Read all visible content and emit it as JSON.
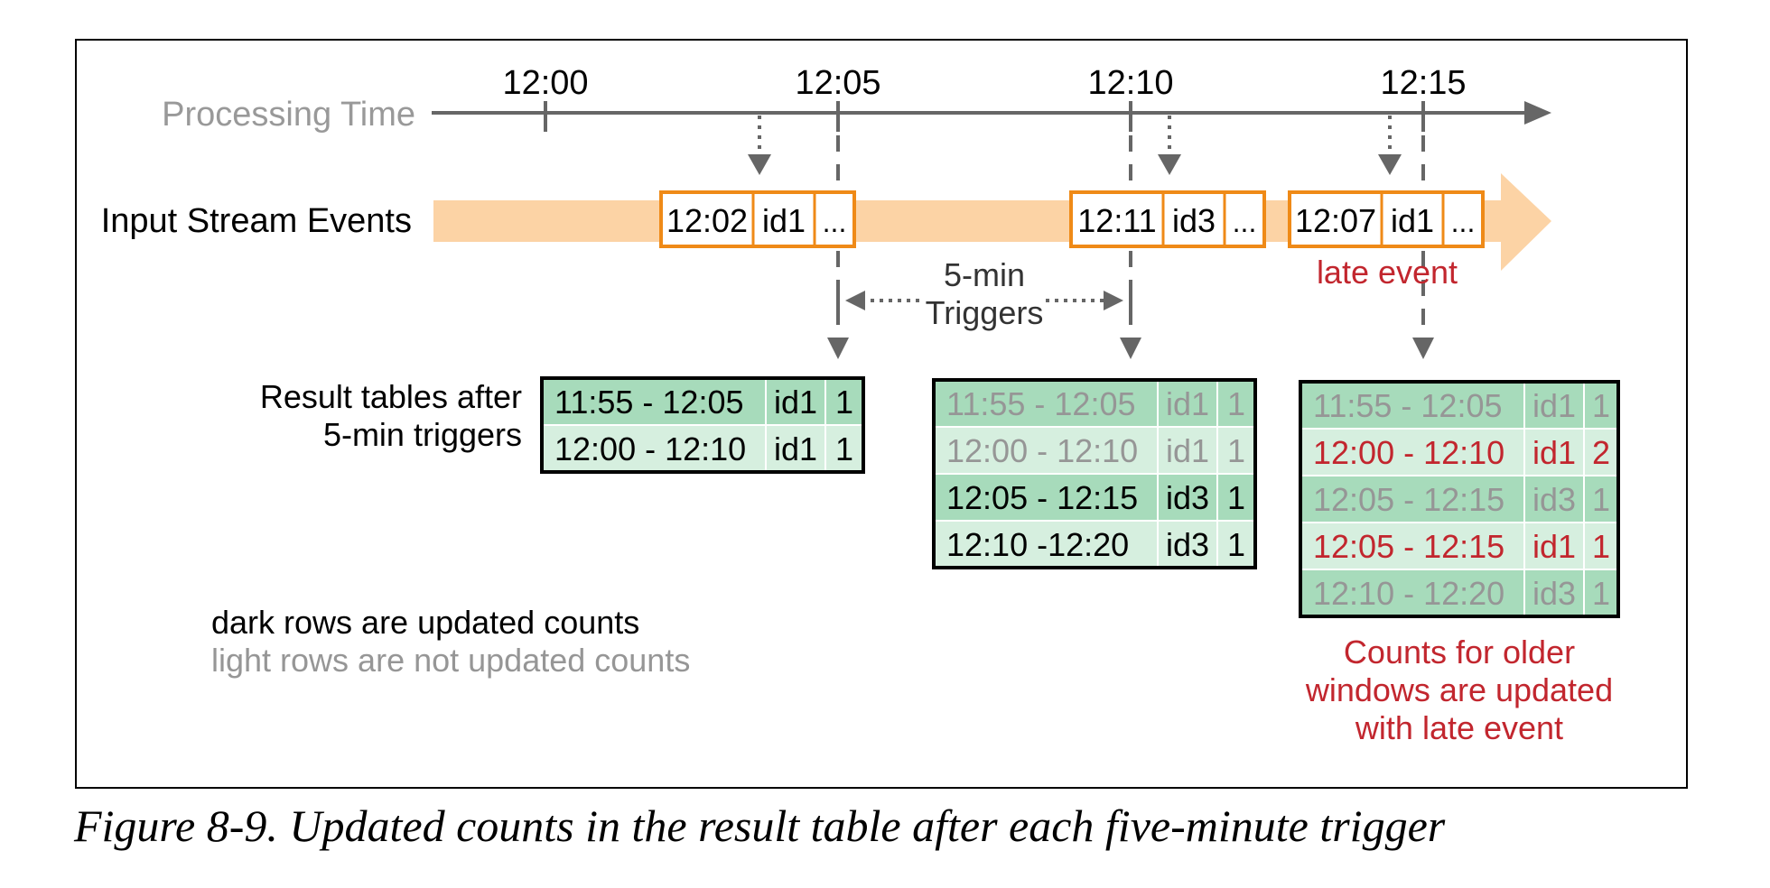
{
  "colors": {
    "frame": "#000000",
    "axis": "#666666",
    "axis_label": "#999999",
    "stream_band": "#fcd3a5",
    "event_border": "#ef8a17",
    "event_fill": "#ffffff",
    "table_border": "#000000",
    "table_dark": "#a7dbbb",
    "table_light": "#d6efdf",
    "text_dark": "#000000",
    "text_faded": "#969696",
    "text_red": "#c2262e"
  },
  "diagram": {
    "processing_time_label": "Processing  Time",
    "ticks": [
      "12:00",
      "12:05",
      "12:10",
      "12:15"
    ],
    "input_stream_label": "Input Stream Events",
    "events": [
      {
        "time": "12:02",
        "id": "id1",
        "more": "..."
      },
      {
        "time": "12:11",
        "id": "id3",
        "more": "..."
      },
      {
        "time": "12:07",
        "id": "id1",
        "more": "..."
      }
    ],
    "late_event_label": "late event",
    "triggers_label_line1": "5-min",
    "triggers_label_line2": "Triggers",
    "result_label_line1": "Result tables after",
    "result_label_line2": "5-min triggers",
    "tables": [
      {
        "rows": [
          {
            "window": "11:55 - 12:05",
            "id": "id1",
            "count": "1",
            "style": "dark"
          },
          {
            "window": "12:00 - 12:10",
            "id": "id1",
            "count": "1",
            "style": "dark"
          }
        ]
      },
      {
        "rows": [
          {
            "window": "11:55 - 12:05",
            "id": "id1",
            "count": "1",
            "style": "faded"
          },
          {
            "window": "12:00 - 12:10",
            "id": "id1",
            "count": "1",
            "style": "faded"
          },
          {
            "window": "12:05 - 12:15",
            "id": "id3",
            "count": "1",
            "style": "dark"
          },
          {
            "window": "12:10 -12:20",
            "id": "id3",
            "count": "1",
            "style": "dark"
          }
        ]
      },
      {
        "rows": [
          {
            "window": "11:55 - 12:05",
            "id": "id1",
            "count": "1",
            "style": "faded"
          },
          {
            "window": "12:00 - 12:10",
            "id": "id1",
            "count": "2",
            "style": "red"
          },
          {
            "window": "12:05 - 12:15",
            "id": "id3",
            "count": "1",
            "style": "faded"
          },
          {
            "window": "12:05 - 12:15",
            "id": "id1",
            "count": "1",
            "style": "red"
          },
          {
            "window": "12:10 -  12:20",
            "id": "id3",
            "count": "1",
            "style": "faded"
          }
        ]
      }
    ],
    "legend_dark": "dark rows are updated counts",
    "legend_light": "light rows are not updated counts",
    "note_lines": [
      "Counts for older",
      "windows are updated",
      "with late event"
    ]
  },
  "caption": "Figure 8-9. Updated counts in the result table after each five-minute trigger"
}
